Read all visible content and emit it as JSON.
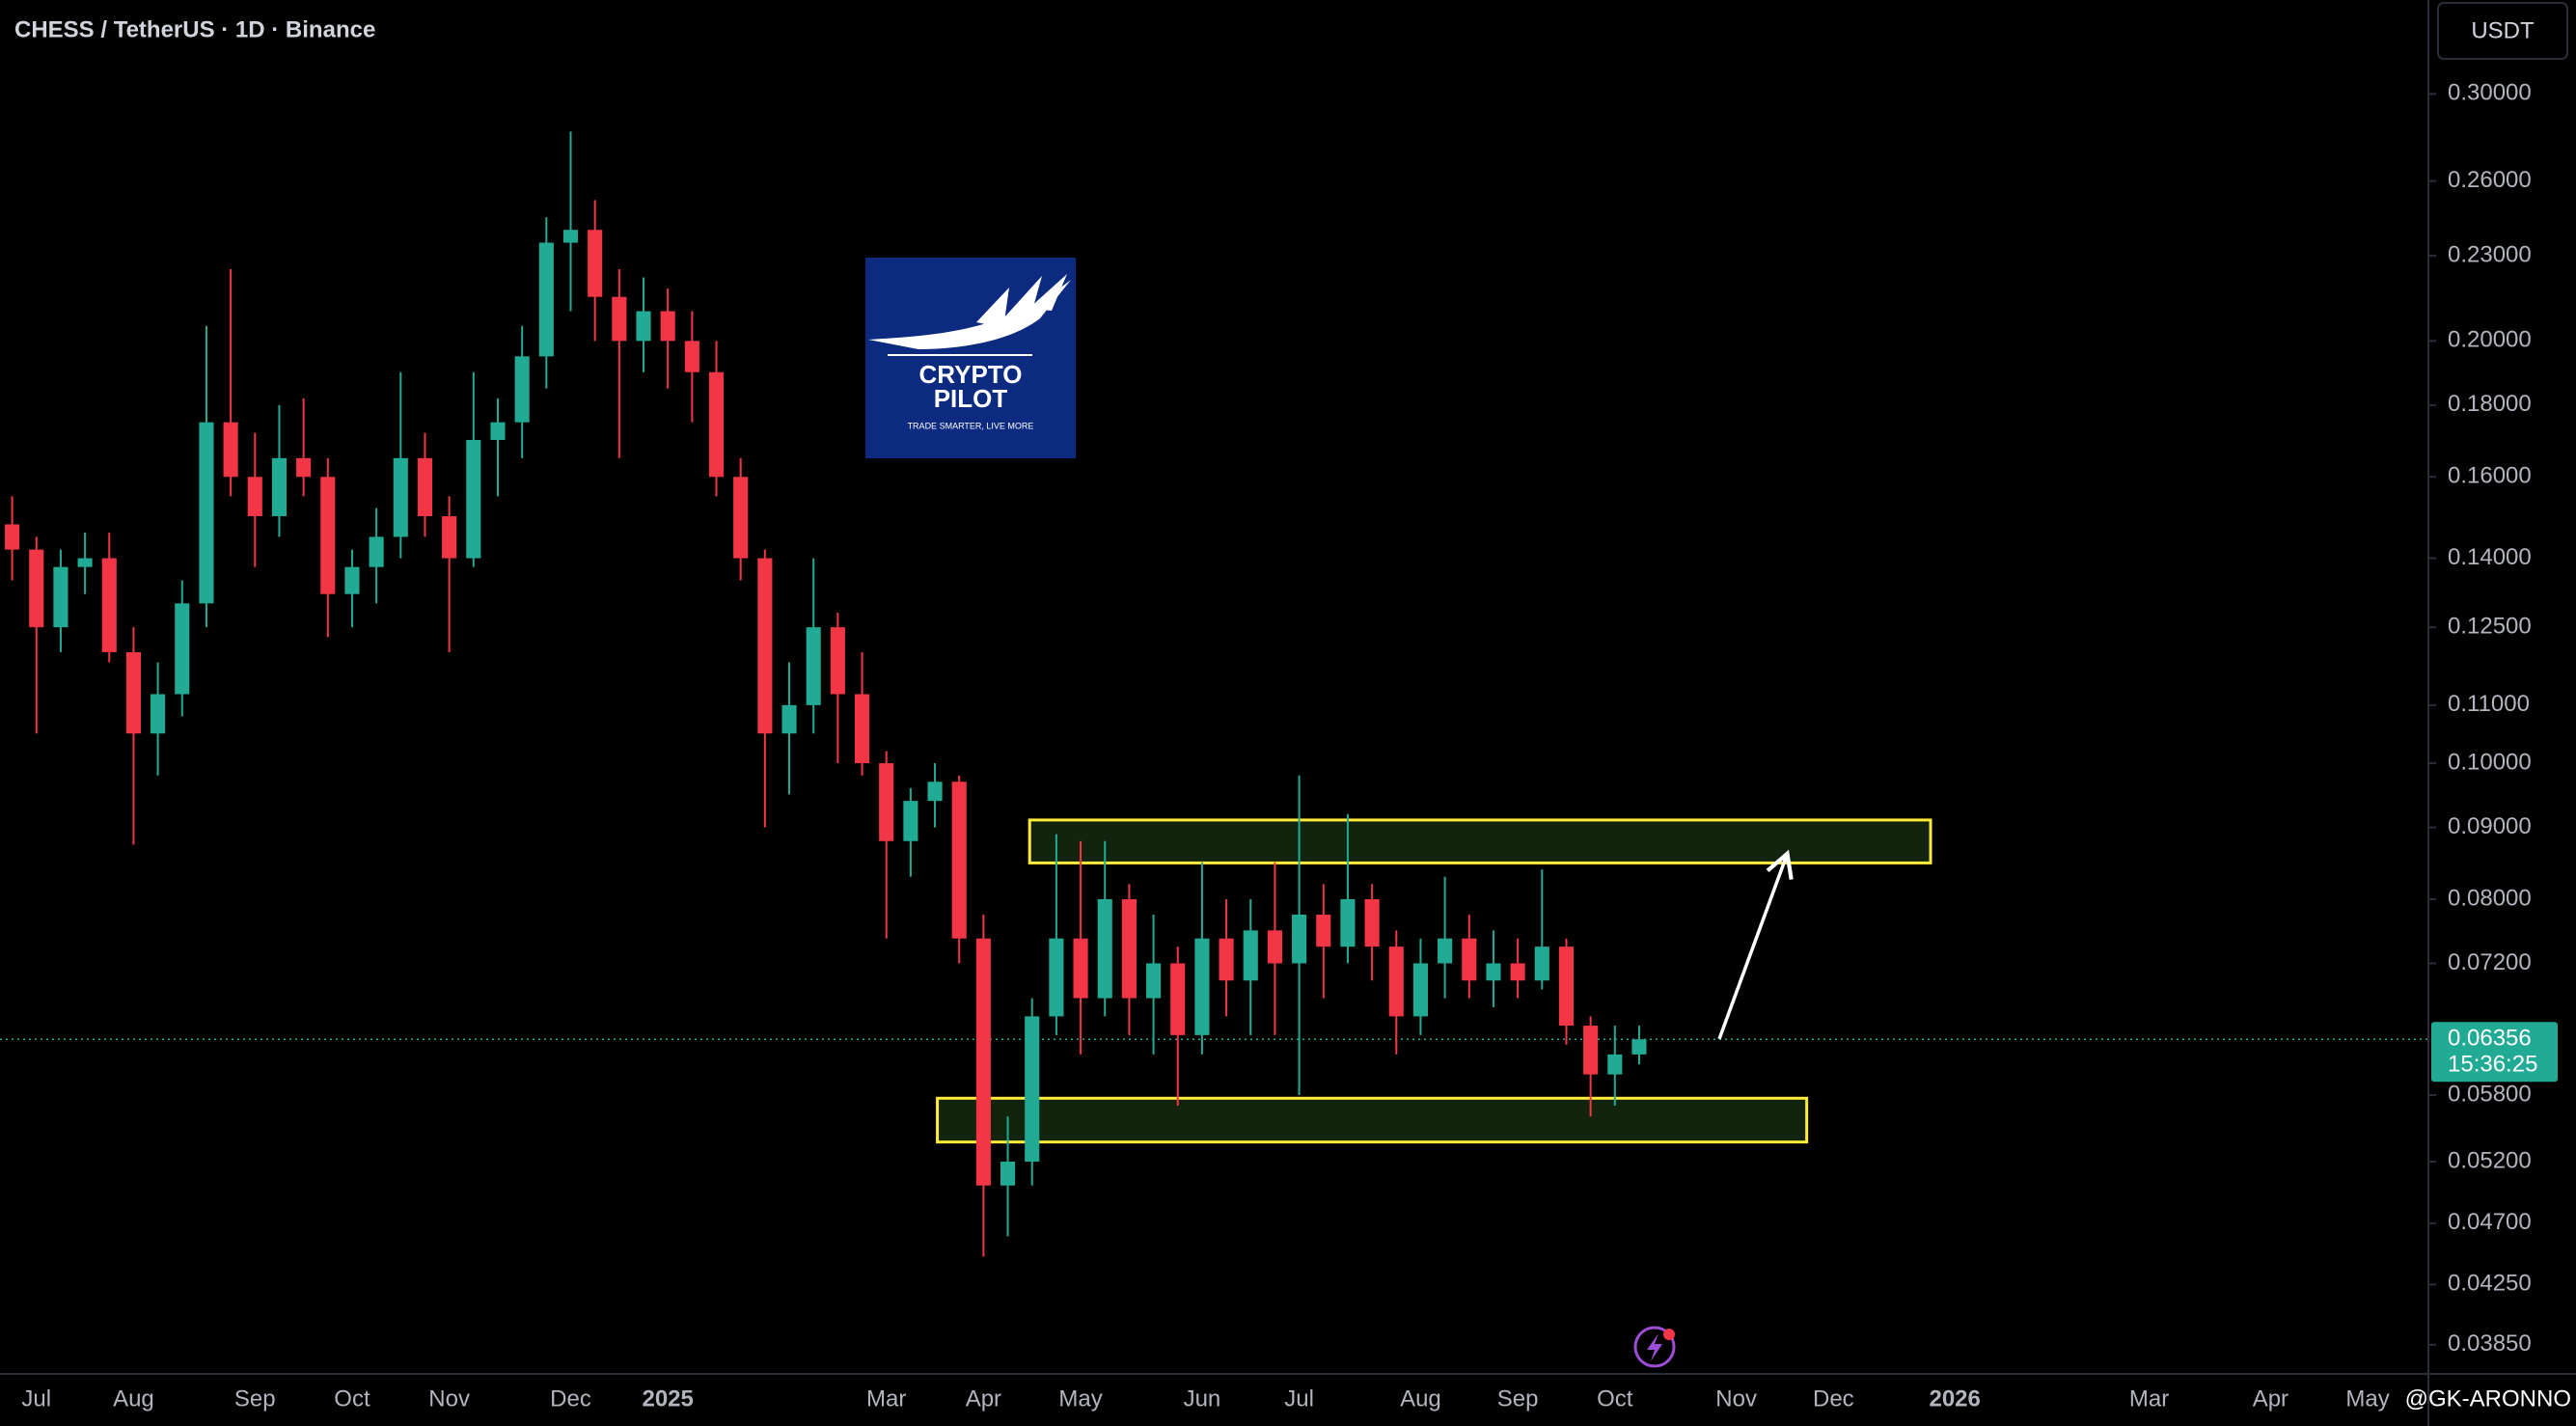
{
  "chart_data": {
    "type": "candlestick",
    "title": "CHESS / TetherUS · 1D · Binance",
    "currency": "USDT",
    "categories": [
      null,
      "Jul",
      null,
      null,
      null,
      "Aug",
      null,
      null,
      null,
      null,
      "Sep",
      null,
      null,
      null,
      "Oct",
      null,
      null,
      null,
      "Nov",
      null,
      null,
      null,
      null,
      "Dec",
      null,
      null,
      null,
      "2025",
      null,
      null,
      null,
      null,
      null,
      null,
      null,
      null,
      "Mar",
      null,
      null,
      null,
      "Apr",
      null,
      null,
      null,
      "May",
      null,
      null,
      null,
      null,
      "Jun",
      null,
      null,
      null,
      "Jul",
      null,
      null,
      null,
      null,
      "Aug",
      null,
      null,
      null,
      "Sep",
      null,
      null,
      null,
      "Oct",
      null,
      null,
      null,
      null,
      "Nov",
      null,
      null,
      null,
      "Dec",
      null,
      null,
      null,
      null,
      "2026",
      null,
      null,
      null,
      null,
      null,
      null,
      null,
      "Mar",
      null,
      null,
      null,
      null,
      "Apr",
      null,
      null,
      null,
      "May",
      null,
      null
    ],
    "open": [
      0.148,
      0.142,
      0.125,
      0.138,
      0.14,
      0.12,
      0.105,
      0.112,
      0.13,
      0.175,
      0.16,
      0.15,
      0.165,
      0.16,
      0.132,
      0.138,
      0.145,
      0.165,
      0.15,
      0.14,
      0.17,
      0.175,
      0.195,
      0.235,
      0.24,
      0.215,
      0.2,
      0.21,
      0.2,
      0.19,
      0.16,
      0.14,
      0.105,
      0.11,
      0.125,
      0.112,
      0.1,
      0.088,
      0.094,
      0.097,
      0.075,
      0.05,
      0.052,
      0.066,
      0.075,
      0.068,
      0.08,
      0.068,
      0.072,
      0.064,
      0.075,
      0.07,
      0.076,
      0.072,
      0.078,
      0.074,
      0.08,
      0.074,
      0.066,
      0.072,
      0.075,
      0.07,
      0.072,
      0.07,
      0.074,
      0.065,
      0.06,
      0.062,
      null,
      null,
      null,
      null,
      null,
      null,
      null,
      null,
      null,
      null,
      null,
      null,
      null,
      null,
      null,
      null,
      null,
      null,
      null,
      null,
      null,
      null,
      null,
      null,
      null,
      null,
      null,
      null,
      null,
      null,
      null,
      null
    ],
    "high": [
      0.155,
      0.145,
      0.142,
      0.146,
      0.146,
      0.125,
      0.118,
      0.135,
      0.205,
      0.225,
      0.172,
      0.18,
      0.182,
      0.165,
      0.142,
      0.152,
      0.19,
      0.172,
      0.155,
      0.19,
      0.182,
      0.205,
      0.245,
      0.282,
      0.252,
      0.225,
      0.222,
      0.218,
      0.21,
      0.2,
      0.165,
      0.142,
      0.118,
      0.14,
      0.128,
      0.12,
      0.102,
      0.096,
      0.1,
      0.098,
      0.078,
      0.056,
      0.068,
      0.089,
      0.088,
      0.088,
      0.082,
      0.078,
      0.074,
      0.085,
      0.08,
      0.08,
      0.085,
      0.098,
      0.082,
      0.092,
      0.082,
      0.076,
      0.075,
      0.083,
      0.078,
      0.076,
      0.075,
      0.084,
      0.075,
      0.066,
      0.065,
      0.065,
      null,
      null,
      null,
      null,
      null,
      null,
      null,
      null,
      null,
      null,
      null,
      null,
      null,
      null,
      null,
      null,
      null,
      null,
      null,
      null,
      null,
      null,
      null,
      null,
      null,
      null,
      null,
      null,
      null,
      null,
      null,
      null
    ],
    "low": [
      0.135,
      0.105,
      0.12,
      0.132,
      0.118,
      0.0875,
      0.098,
      0.108,
      0.125,
      0.155,
      0.138,
      0.145,
      0.155,
      0.123,
      0.125,
      0.13,
      0.14,
      0.145,
      0.12,
      0.138,
      0.155,
      0.165,
      0.185,
      0.21,
      0.2,
      0.165,
      0.19,
      0.185,
      0.175,
      0.155,
      0.135,
      0.09,
      0.095,
      0.105,
      0.1,
      0.098,
      0.075,
      0.083,
      0.09,
      0.072,
      0.0445,
      0.046,
      0.05,
      0.064,
      0.062,
      0.066,
      0.064,
      0.062,
      0.057,
      0.062,
      0.066,
      0.064,
      0.064,
      0.058,
      0.068,
      0.072,
      0.07,
      0.062,
      0.064,
      0.068,
      0.068,
      0.067,
      0.068,
      0.069,
      0.063,
      0.056,
      0.057,
      0.061,
      null,
      null,
      null,
      null,
      null,
      null,
      null,
      null,
      null,
      null,
      null,
      null,
      null,
      null,
      null,
      null,
      null,
      null,
      null,
      null,
      null,
      null,
      null,
      null,
      null,
      null,
      null,
      null,
      null,
      null,
      null,
      null
    ],
    "close": [
      0.142,
      0.125,
      0.138,
      0.14,
      0.12,
      0.105,
      0.112,
      0.13,
      0.175,
      0.16,
      0.15,
      0.165,
      0.16,
      0.132,
      0.138,
      0.145,
      0.165,
      0.15,
      0.14,
      0.17,
      0.175,
      0.195,
      0.235,
      0.24,
      0.215,
      0.2,
      0.21,
      0.2,
      0.19,
      0.16,
      0.14,
      0.105,
      0.11,
      0.125,
      0.112,
      0.1,
      0.088,
      0.094,
      0.097,
      0.075,
      0.05,
      0.052,
      0.066,
      0.075,
      0.068,
      0.08,
      0.068,
      0.072,
      0.064,
      0.075,
      0.07,
      0.076,
      0.072,
      0.078,
      0.074,
      0.08,
      0.074,
      0.066,
      0.072,
      0.075,
      0.07,
      0.072,
      0.07,
      0.074,
      0.065,
      0.06,
      0.062,
      0.06356,
      null,
      null,
      null,
      null,
      null,
      null,
      null,
      null,
      null,
      null,
      null,
      null,
      null,
      null,
      null,
      null,
      null,
      null,
      null,
      null,
      null,
      null,
      null,
      null,
      null,
      null,
      null,
      null,
      null,
      null,
      null,
      null
    ],
    "up_color": "#22ab94",
    "down_color": "#f23645",
    "log_scale": true,
    "grid": false,
    "ylim": [
      0.0367,
      0.35
    ],
    "yticks": [
      {
        "value": 0.3,
        "label": "0.30000"
      },
      {
        "value": 0.26,
        "label": "0.26000"
      },
      {
        "value": 0.23,
        "label": "0.23000"
      },
      {
        "value": 0.2,
        "label": "0.20000"
      },
      {
        "value": 0.18,
        "label": "0.18000"
      },
      {
        "value": 0.16,
        "label": "0.16000"
      },
      {
        "value": 0.14,
        "label": "0.14000"
      },
      {
        "value": 0.125,
        "label": "0.12500"
      },
      {
        "value": 0.11,
        "label": "0.11000"
      },
      {
        "value": 0.1,
        "label": "0.10000"
      },
      {
        "value": 0.09,
        "label": "0.09000"
      },
      {
        "value": 0.08,
        "label": "0.08000"
      },
      {
        "value": 0.072,
        "label": "0.07200"
      },
      {
        "value": 0.058,
        "label": "0.05800"
      },
      {
        "value": 0.052,
        "label": "0.05200"
      },
      {
        "value": 0.047,
        "label": "0.04700"
      },
      {
        "value": 0.0425,
        "label": "0.04250"
      },
      {
        "value": 0.0385,
        "label": "0.03850"
      }
    ],
    "last_price": 0.06356,
    "last_price_color": "#22ab94",
    "countdown": "15:36:25",
    "zones": [
      {
        "from": 42.4,
        "to": 79.5,
        "low": 0.0849,
        "high": 0.0911
      },
      {
        "from": 38.6,
        "to": 74.4,
        "low": 0.0537,
        "high": 0.0577
      }
    ],
    "zone_color": "#ffeb3b",
    "arrow": {
      "from": [
        70.3,
        0.0636
      ],
      "to": [
        73.1,
        0.0862
      ]
    }
  },
  "logo": {
    "line1": "CRYPTO",
    "line2": "PILOT",
    "tagline": "TRADE SMARTER, LIVE MORE"
  },
  "watermark": "@GK-ARONNO"
}
